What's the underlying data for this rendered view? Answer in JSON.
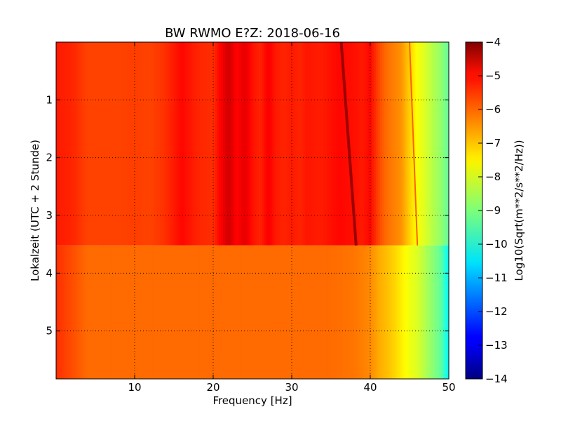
{
  "chart_data": {
    "type": "heatmap",
    "title": "BW RWMO E?Z: 2018-06-16",
    "xlabel": "Frequency [Hz]",
    "ylabel": "Lokalzeit (UTC + 2 Stunde)",
    "xlim": [
      0,
      50
    ],
    "ylim": [
      5.83,
      0
    ],
    "x_ticks": [
      10,
      20,
      30,
      40,
      50
    ],
    "y_ticks": [
      1,
      2,
      3,
      4,
      5
    ],
    "grid": true,
    "colormap": "jet",
    "colorbar": {
      "label": "Log10(Sqrt(m**2/s**2/Hz))",
      "min": -14,
      "max": -4,
      "ticks": [
        -4,
        -5,
        -6,
        -7,
        -8,
        -9,
        -10,
        -11,
        -12,
        -13,
        -14
      ]
    },
    "regime_change_time": 3.52,
    "features": [
      {
        "label": "drifting narrow line",
        "start": [
          36.3,
          0
        ],
        "end": [
          38.2,
          3.52
        ],
        "value": -4.3
      },
      {
        "label": "faint drifting line",
        "start": [
          45.0,
          0
        ],
        "end": [
          46.0,
          3.52
        ],
        "value": -6.2
      }
    ],
    "spectrum_before": {
      "freq": [
        0,
        2,
        4,
        6,
        8,
        10,
        12,
        14,
        16,
        18,
        20,
        21,
        22,
        23,
        24,
        25,
        26,
        27,
        28,
        29,
        30,
        31,
        32,
        33,
        34,
        35,
        36,
        38,
        39,
        40,
        41,
        42,
        43,
        44,
        45,
        46,
        47,
        48,
        49,
        50
      ],
      "value": [
        -5.5,
        -5.6,
        -5.9,
        -5.9,
        -5.9,
        -5.85,
        -5.9,
        -5.7,
        -5.3,
        -5.6,
        -5.7,
        -5.2,
        -4.8,
        -5.3,
        -5.0,
        -5.4,
        -5.6,
        -5.2,
        -5.5,
        -5.6,
        -5.5,
        -5.6,
        -5.45,
        -5.5,
        -5.5,
        -5.4,
        -5.3,
        -5.4,
        -5.5,
        -5.3,
        -5.9,
        -6.3,
        -6.5,
        -6.7,
        -7.3,
        -7.8,
        -8.1,
        -8.5,
        -8.8,
        -9.3
      ]
    },
    "spectrum_after": {
      "freq": [
        0,
        2,
        4,
        6,
        8,
        10,
        15,
        20,
        25,
        30,
        35,
        38,
        40,
        41,
        42,
        43,
        44,
        45,
        46,
        47,
        48,
        49,
        50
      ],
      "value": [
        -5.7,
        -6.0,
        -6.3,
        -6.3,
        -6.3,
        -6.3,
        -6.3,
        -6.3,
        -6.3,
        -6.3,
        -6.3,
        -6.4,
        -6.6,
        -6.9,
        -7.1,
        -7.3,
        -7.6,
        -7.9,
        -8.1,
        -8.5,
        -8.9,
        -9.3,
        -10.3
      ]
    }
  }
}
